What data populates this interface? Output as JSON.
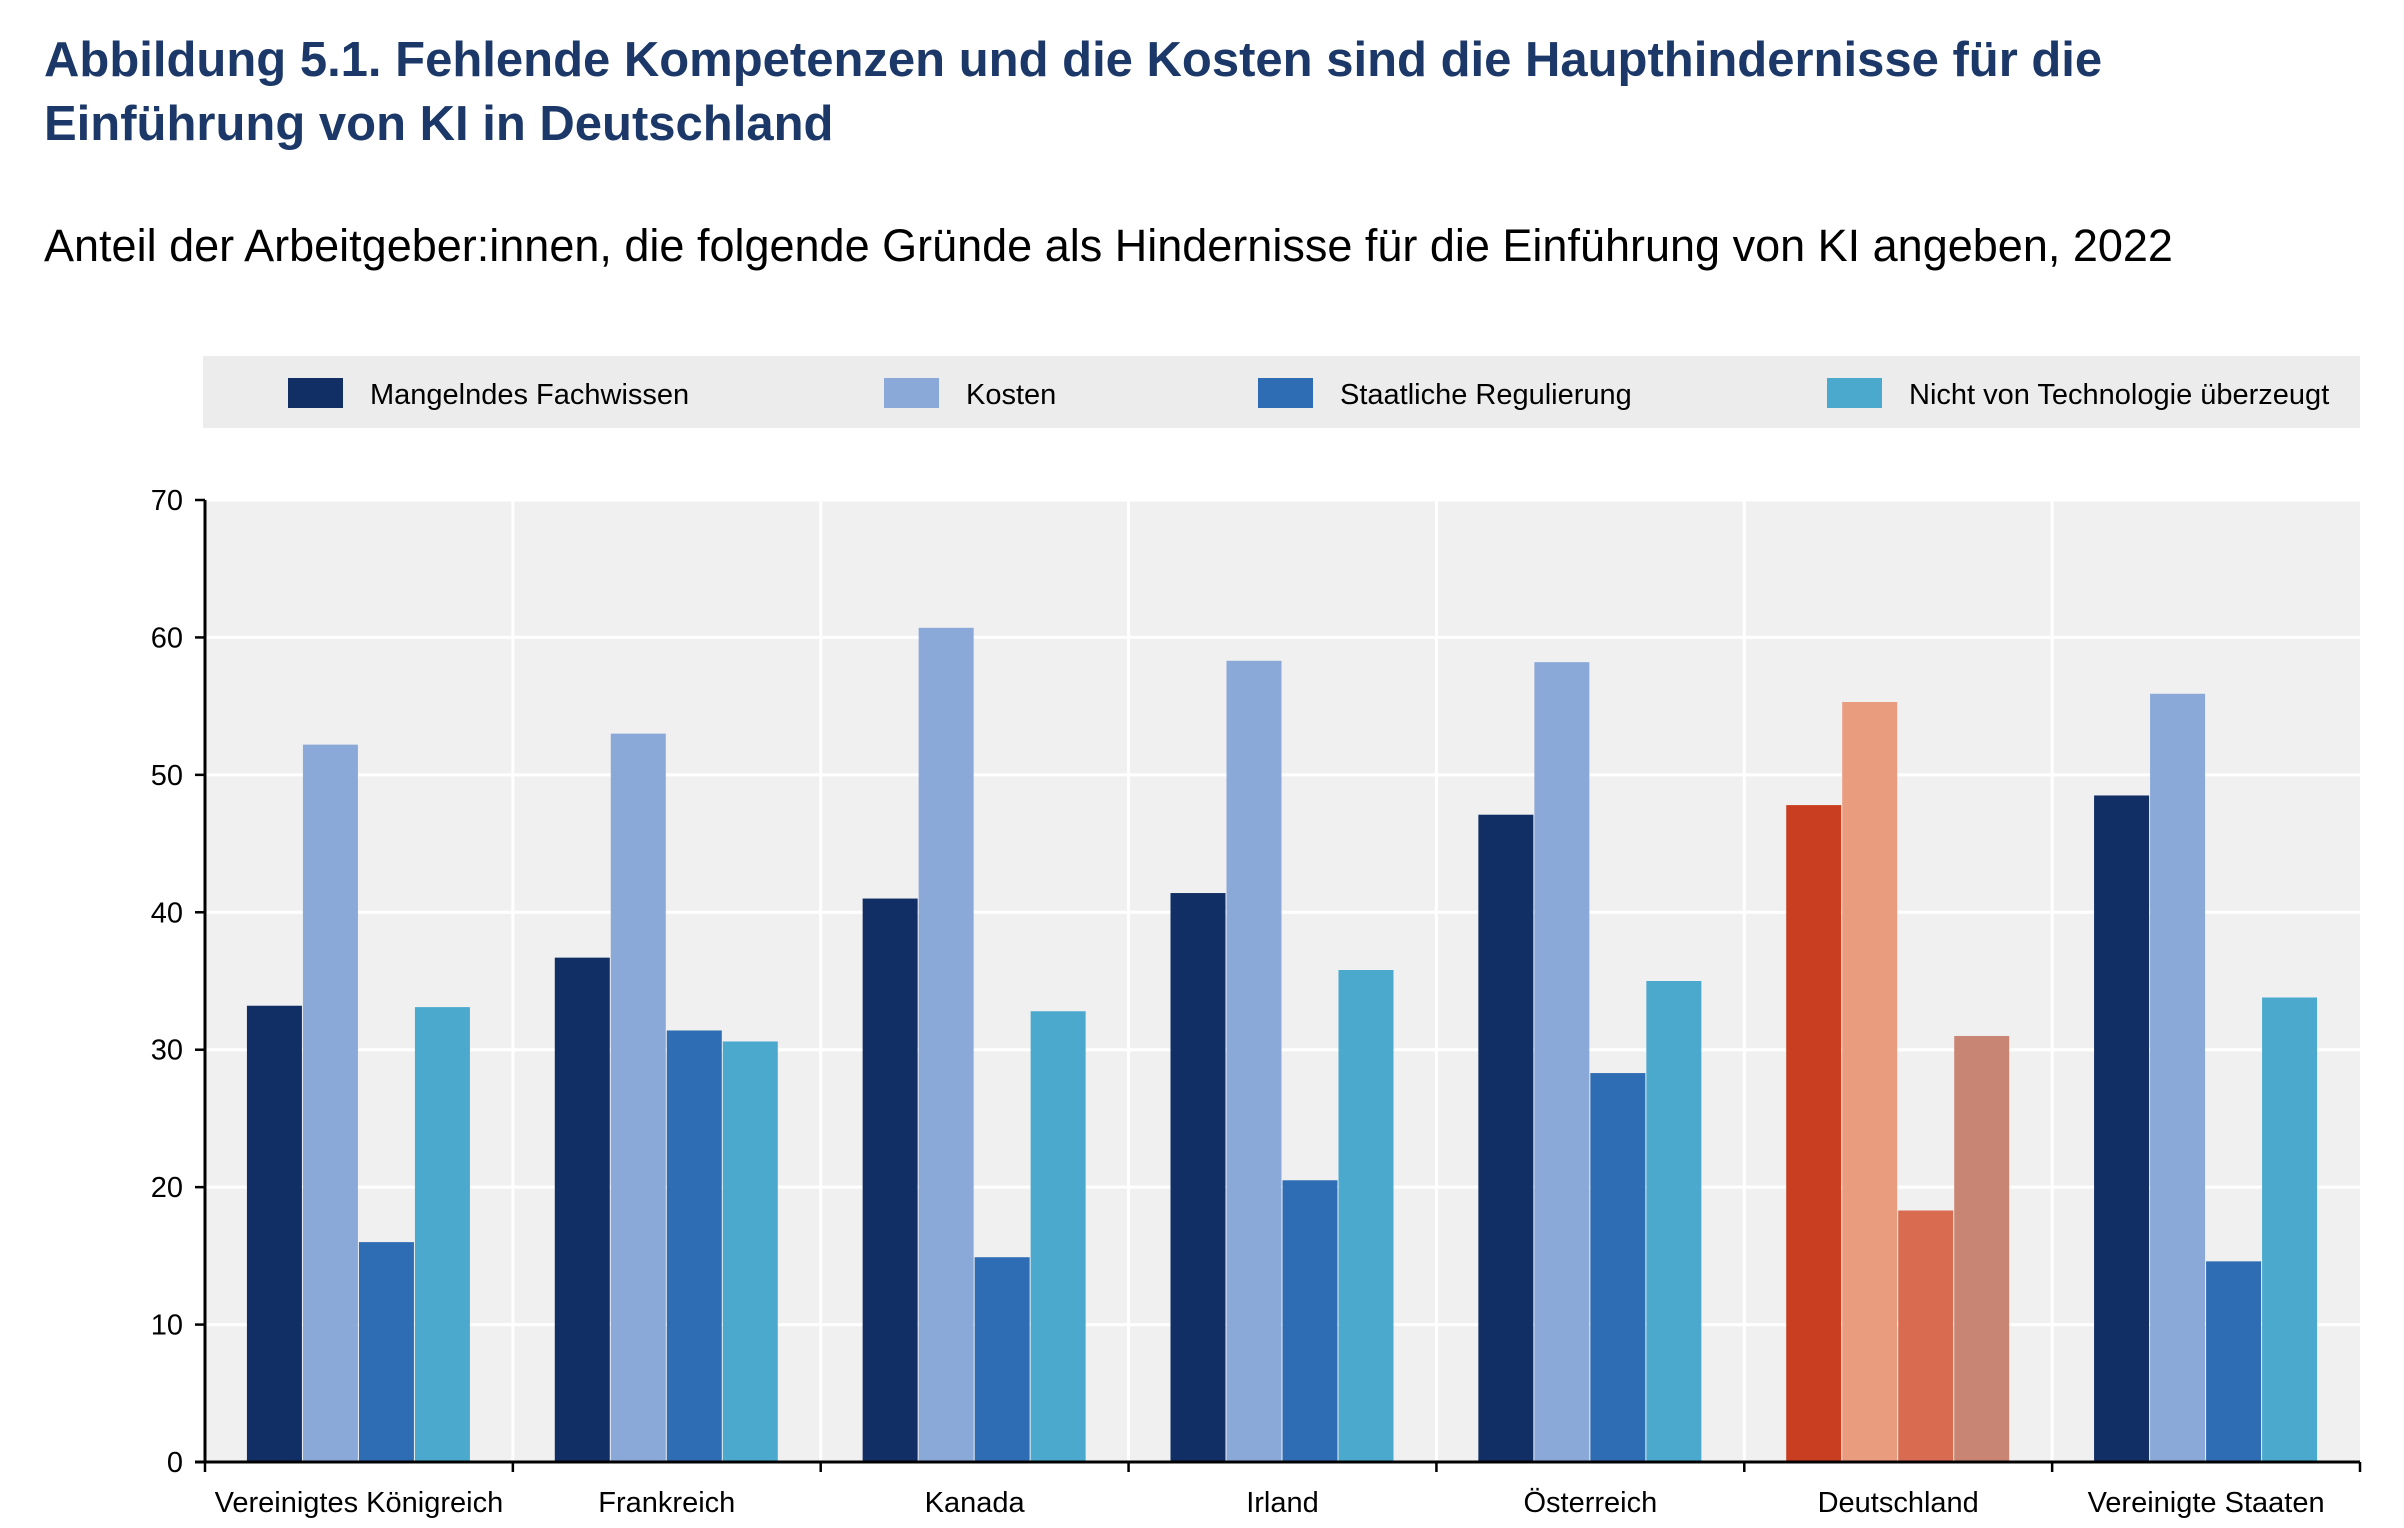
{
  "header": {
    "title": "Abbildung 5.1. Fehlende Kompetenzen und die Kosten sind die Haupthindernisse für die Einführung von KI in Deutschland",
    "subtitle": "Anteil der Arbeitgeber:innen, die folgende Gründe als Hindernisse für die Einführung von KI angeben, 2022"
  },
  "colors": {
    "series": [
      "#112f64",
      "#8aa9d8",
      "#2e6cb4",
      "#4ba9ce"
    ],
    "highlight": [
      "#c93e20",
      "#ea9c7e",
      "#d86b50",
      "#c98574"
    ],
    "plot_bg": "#f0f0f0",
    "legend_bg": "#ececec",
    "axis": "#000000"
  },
  "chart_data": {
    "type": "bar",
    "title": "Abbildung 5.1. Fehlende Kompetenzen und die Kosten sind die Haupthindernisse für die Einführung von KI in Deutschland",
    "subtitle": "Anteil der Arbeitgeber:innen, die folgende Gründe als Hindernisse für die Einführung von KI angeben, 2022",
    "xlabel": "",
    "ylabel": "",
    "ylim": [
      0,
      70
    ],
    "yticks": [
      0,
      10,
      20,
      30,
      40,
      50,
      60,
      70
    ],
    "grid": true,
    "legend_position": "top",
    "highlight_category": "Deutschland",
    "categories": [
      "Vereinigtes Königreich",
      "Frankreich",
      "Kanada",
      "Irland",
      "Österreich",
      "Deutschland",
      "Vereinigte Staaten"
    ],
    "series": [
      {
        "name": "Mangelndes Fachwissen",
        "values": [
          33.2,
          36.7,
          41.0,
          41.4,
          47.1,
          47.8,
          48.5
        ]
      },
      {
        "name": "Kosten",
        "values": [
          52.2,
          53.0,
          60.7,
          58.3,
          58.2,
          55.3,
          55.9
        ]
      },
      {
        "name": "Staatliche Regulierung",
        "values": [
          16.0,
          31.4,
          14.9,
          20.5,
          28.3,
          18.3,
          14.6
        ]
      },
      {
        "name": "Nicht von Technologie überzeugt",
        "values": [
          33.1,
          30.6,
          32.8,
          35.8,
          35.0,
          31.0,
          33.8
        ]
      }
    ]
  }
}
